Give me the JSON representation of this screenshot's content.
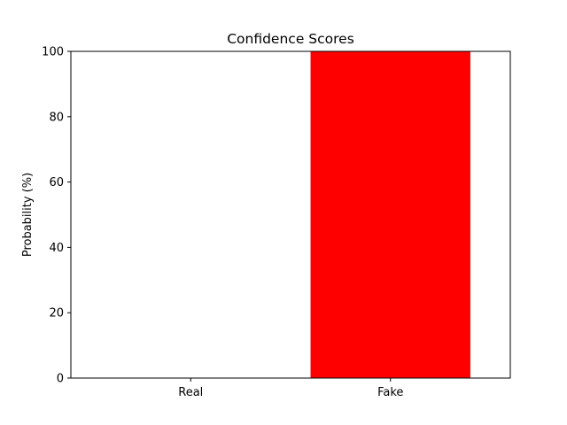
{
  "chart_data": {
    "type": "bar",
    "title": "Confidence Scores",
    "xlabel": "",
    "ylabel": "Probability (%)",
    "categories": [
      "Real",
      "Fake"
    ],
    "values": [
      0,
      100
    ],
    "bar_colors": [
      "#ff0000",
      "#ff0000"
    ],
    "ylim": [
      0,
      100
    ],
    "yticks": [
      0,
      20,
      40,
      60,
      80,
      100
    ],
    "grid": false,
    "legend": "none"
  }
}
